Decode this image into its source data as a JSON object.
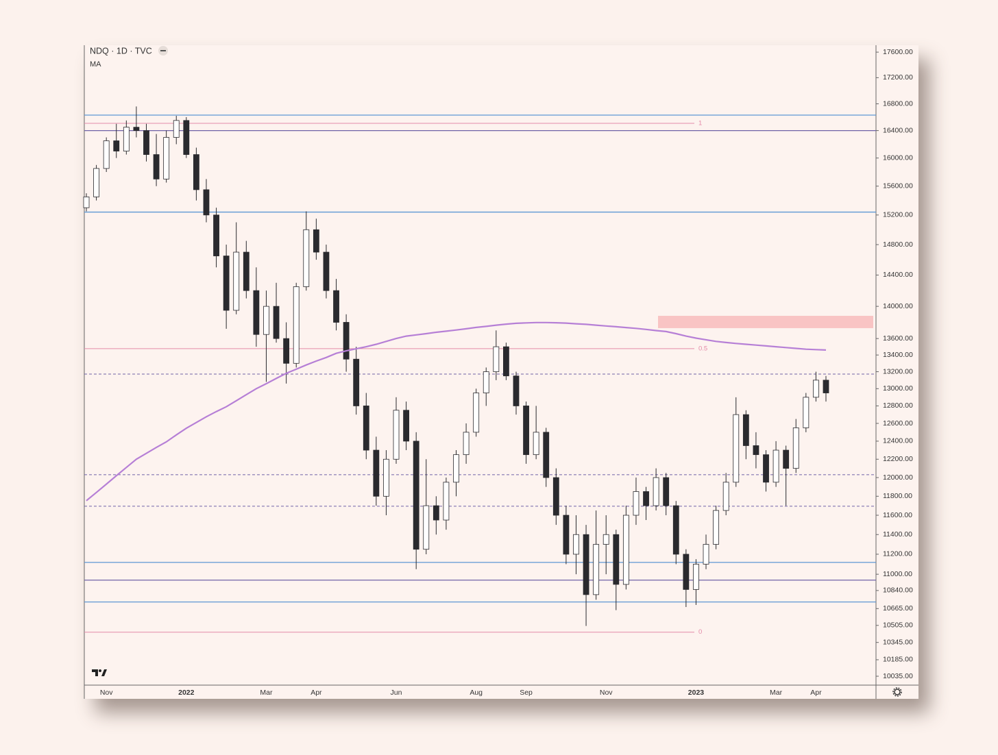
{
  "chart_data": {
    "type": "candlestick",
    "title": "NDQ · 1D · TVC",
    "log": true,
    "ylim": [
      9955,
      17710
    ],
    "yticks": [
      {
        "value": 17600,
        "label": "17600.00"
      },
      {
        "value": 17200,
        "label": "17200.00"
      },
      {
        "value": 16800,
        "label": "16800.00"
      },
      {
        "value": 16400,
        "label": "16400.00"
      },
      {
        "value": 16000,
        "label": "16000.00"
      },
      {
        "value": 15600,
        "label": "15600.00"
      },
      {
        "value": 15200,
        "label": "15200.00"
      },
      {
        "value": 14800,
        "label": "14800.00"
      },
      {
        "value": 14400,
        "label": "14400.00"
      },
      {
        "value": 14000,
        "label": "14000.00"
      },
      {
        "value": 13600,
        "label": "13600.00"
      },
      {
        "value": 13400,
        "label": "13400.00"
      },
      {
        "value": 13200,
        "label": "13200.00"
      },
      {
        "value": 13000,
        "label": "13000.00"
      },
      {
        "value": 12800,
        "label": "12800.00"
      },
      {
        "value": 12600,
        "label": "12600.00"
      },
      {
        "value": 12400,
        "label": "12400.00"
      },
      {
        "value": 12200,
        "label": "12200.00"
      },
      {
        "value": 12000,
        "label": "12000.00"
      },
      {
        "value": 11800,
        "label": "11800.00"
      },
      {
        "value": 11600,
        "label": "11600.00"
      },
      {
        "value": 11400,
        "label": "11400.00"
      },
      {
        "value": 11200,
        "label": "11200.00"
      },
      {
        "value": 11000,
        "label": "11000.00"
      },
      {
        "value": 10840,
        "label": "10840.00"
      },
      {
        "value": 10665,
        "label": "10665.00"
      },
      {
        "value": 10505,
        "label": "10505.00"
      },
      {
        "value": 10345,
        "label": "10345.00"
      },
      {
        "value": 10185,
        "label": "10185.00"
      },
      {
        "value": 10035,
        "label": "10035.00"
      }
    ],
    "categories": [
      null,
      null,
      "Nov",
      null,
      null,
      null,
      null,
      null,
      null,
      null,
      "2022",
      null,
      null,
      null,
      null,
      null,
      null,
      null,
      "Mar",
      null,
      null,
      null,
      null,
      "Apr",
      null,
      null,
      null,
      null,
      null,
      null,
      null,
      "Jun",
      null,
      null,
      null,
      null,
      null,
      null,
      null,
      "Aug",
      null,
      null,
      null,
      null,
      "Sep",
      null,
      null,
      null,
      null,
      null,
      null,
      null,
      "Nov",
      null,
      null,
      null,
      null,
      null,
      null,
      null,
      null,
      "2023",
      null,
      null,
      null,
      null,
      null,
      null,
      null,
      "Mar",
      null,
      null,
      null,
      "Apr",
      null
    ],
    "up_color": "#ffffff",
    "down_color": "#2a2a2e",
    "open": [
      15300,
      15450,
      15850,
      16250,
      16100,
      16450,
      16400,
      16050,
      15700,
      16300,
      16550,
      16050,
      15550,
      15200,
      14650,
      13950,
      14700,
      14200,
      13650,
      14000,
      13600,
      13300,
      14250,
      15000,
      14700,
      14200,
      13800,
      13350,
      12800,
      12300,
      11800,
      12200,
      12750,
      12400,
      11250,
      11700,
      11550,
      11950,
      12250,
      12500,
      12950,
      13200,
      13500,
      13150,
      12800,
      12250,
      12500,
      12000,
      11600,
      11200,
      11400,
      10800,
      11300,
      11400,
      10900,
      11600,
      11850,
      11700,
      12000,
      11700,
      11200,
      10850,
      11100,
      11300,
      11650,
      11950,
      12700,
      12350,
      12250,
      11950,
      12300,
      12100,
      12550,
      12900,
      13100
    ],
    "high": [
      15500,
      15900,
      16300,
      16500,
      16550,
      16760,
      16500,
      16350,
      16400,
      16620,
      16600,
      16150,
      15700,
      15300,
      14800,
      15100,
      14850,
      14500,
      14200,
      14300,
      13800,
      14300,
      15250,
      15150,
      14800,
      14350,
      13900,
      13500,
      12950,
      12450,
      12300,
      12900,
      12850,
      12500,
      12200,
      11800,
      12000,
      12300,
      12600,
      13000,
      13250,
      13700,
      13550,
      13200,
      12850,
      12800,
      12550,
      12100,
      11700,
      11600,
      11500,
      11650,
      11600,
      11450,
      11700,
      12000,
      11900,
      12100,
      12050,
      11750,
      11250,
      11150,
      11400,
      11700,
      12050,
      12900,
      12750,
      12500,
      12300,
      12400,
      12350,
      12650,
      12950,
      13200,
      13150
    ],
    "low": [
      15250,
      15400,
      15800,
      16000,
      16050,
      16300,
      15950,
      15600,
      15650,
      16200,
      16000,
      15400,
      15100,
      14500,
      13720,
      13900,
      14100,
      13500,
      13080,
      13550,
      13060,
      13250,
      14200,
      14600,
      14100,
      13700,
      13200,
      12700,
      12200,
      11700,
      11600,
      12150,
      12300,
      11050,
      11200,
      11400,
      11450,
      11800,
      12150,
      12450,
      12800,
      13100,
      13100,
      12700,
      12150,
      12200,
      11900,
      11500,
      11100,
      11000,
      10500,
      10750,
      11000,
      10650,
      10850,
      11500,
      11550,
      11650,
      11600,
      11100,
      10680,
      10700,
      11050,
      11250,
      11600,
      11900,
      12200,
      12100,
      11850,
      11900,
      11700,
      12050,
      12500,
      12850,
      12850
    ],
    "close": [
      15450,
      15850,
      16250,
      16100,
      16450,
      16400,
      16050,
      15700,
      16300,
      16550,
      16050,
      15550,
      15200,
      14650,
      13950,
      14700,
      14200,
      13650,
      14000,
      13600,
      13300,
      14250,
      15000,
      14700,
      14200,
      13800,
      13350,
      12800,
      12300,
      11800,
      12200,
      12750,
      12400,
      11250,
      11700,
      11550,
      11950,
      12250,
      12500,
      12950,
      13200,
      13500,
      13150,
      12800,
      12250,
      12500,
      12000,
      11600,
      11200,
      11400,
      10800,
      11300,
      11400,
      10900,
      11600,
      11850,
      11700,
      12000,
      11700,
      11200,
      10850,
      11100,
      11300,
      11650,
      11950,
      12700,
      12350,
      12250,
      11950,
      12300,
      12100,
      12550,
      12900,
      13100,
      12950
    ],
    "ma": {
      "name": "MA",
      "color": "#b67fd6",
      "values": [
        11753,
        11840,
        11930,
        12020,
        12110,
        12200,
        12265,
        12330,
        12392,
        12470,
        12545,
        12610,
        12675,
        12735,
        12790,
        12860,
        12930,
        13000,
        13059,
        13120,
        13181,
        13230,
        13280,
        13327,
        13370,
        13420,
        13450,
        13475,
        13500,
        13530,
        13565,
        13600,
        13630,
        13645,
        13660,
        13677,
        13690,
        13705,
        13720,
        13737,
        13750,
        13765,
        13778,
        13788,
        13793,
        13797,
        13797,
        13795,
        13790,
        13782,
        13775,
        13765,
        13755,
        13745,
        13735,
        13725,
        13712,
        13698,
        13686,
        13660,
        13630,
        13605,
        13585,
        13565,
        13552,
        13540,
        13530,
        13520,
        13510,
        13500,
        13490,
        13480,
        13470,
        13465,
        13460
      ]
    },
    "levels": [
      {
        "value": 16630,
        "color": "#5d97d3",
        "style": "solid"
      },
      {
        "value": 16400,
        "color": "#6f62a6",
        "style": "solid"
      },
      {
        "value": 15240,
        "color": "#5d97d3",
        "style": "solid"
      },
      {
        "value": 13172,
        "color": "#6f62a6",
        "style": "dashed"
      },
      {
        "value": 12031,
        "color": "#6f62a6",
        "style": "dashed"
      },
      {
        "value": 11695,
        "color": "#6f62a6",
        "style": "dashed"
      },
      {
        "value": 11118,
        "color": "#5d97d3",
        "style": "solid"
      },
      {
        "value": 10942,
        "color": "#6f62a6",
        "style": "solid"
      },
      {
        "value": 10729,
        "color": "#5d97d3",
        "style": "solid"
      }
    ],
    "fib": {
      "color": "#e48aa8",
      "levels": [
        {
          "value": 16507,
          "label": "1"
        },
        {
          "value": 13477,
          "label": "0.5"
        },
        {
          "value": 10441,
          "label": "0"
        }
      ]
    },
    "zone": {
      "low": 13728,
      "high": 13881,
      "color": "#f9c4c4"
    }
  }
}
